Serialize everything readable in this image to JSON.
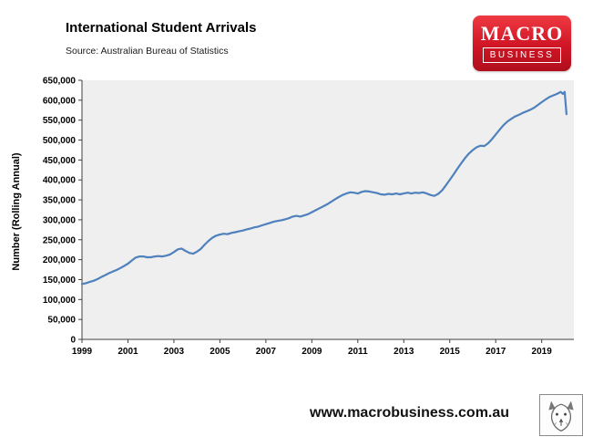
{
  "logo": {
    "line1": "MACRO",
    "line2": "BUSINESS"
  },
  "footer": {
    "url": "www.macrobusiness.com.au",
    "wolf_icon": "wolf-sketch-logo"
  },
  "chart_data": {
    "type": "line",
    "title": "International Student Arrivals",
    "source": "Source: Australian Bureau of Statistics",
    "ylabel": "Number (Rolling Annual)",
    "xlabel": "",
    "series_name": "International student arrivals, rolling annual",
    "legend_position": "none",
    "grid": false,
    "line_color": "#4f81bd",
    "plot_bg": "#efefef",
    "axis_color": "#404040",
    "ylim": [
      0,
      650000
    ],
    "ytick_step": 50000,
    "yticks": [
      0,
      50000,
      100000,
      150000,
      200000,
      250000,
      300000,
      350000,
      400000,
      450000,
      500000,
      550000,
      600000,
      650000
    ],
    "xlim": [
      1999,
      2020.4
    ],
    "xticks": [
      1999,
      2001,
      2003,
      2005,
      2007,
      2009,
      2011,
      2013,
      2015,
      2017,
      2019
    ],
    "points": [
      [
        1999.0,
        139000
      ],
      [
        1999.17,
        141000
      ],
      [
        1999.33,
        144000
      ],
      [
        1999.5,
        147000
      ],
      [
        1999.67,
        151000
      ],
      [
        1999.83,
        156000
      ],
      [
        2000.0,
        161000
      ],
      [
        2000.17,
        166000
      ],
      [
        2000.33,
        170000
      ],
      [
        2000.5,
        174000
      ],
      [
        2000.67,
        179000
      ],
      [
        2000.83,
        184000
      ],
      [
        2001.0,
        190000
      ],
      [
        2001.17,
        198000
      ],
      [
        2001.33,
        205000
      ],
      [
        2001.5,
        208000
      ],
      [
        2001.67,
        208000
      ],
      [
        2001.83,
        206000
      ],
      [
        2002.0,
        206000
      ],
      [
        2002.17,
        208000
      ],
      [
        2002.33,
        209000
      ],
      [
        2002.5,
        208000
      ],
      [
        2002.67,
        210000
      ],
      [
        2002.83,
        213000
      ],
      [
        2003.0,
        219000
      ],
      [
        2003.17,
        226000
      ],
      [
        2003.33,
        228000
      ],
      [
        2003.5,
        222000
      ],
      [
        2003.67,
        217000
      ],
      [
        2003.83,
        215000
      ],
      [
        2004.0,
        220000
      ],
      [
        2004.17,
        227000
      ],
      [
        2004.33,
        237000
      ],
      [
        2004.5,
        247000
      ],
      [
        2004.67,
        255000
      ],
      [
        2004.83,
        260000
      ],
      [
        2005.0,
        263000
      ],
      [
        2005.17,
        265000
      ],
      [
        2005.33,
        264000
      ],
      [
        2005.5,
        267000
      ],
      [
        2005.67,
        269000
      ],
      [
        2005.83,
        271000
      ],
      [
        2006.0,
        273000
      ],
      [
        2006.17,
        276000
      ],
      [
        2006.33,
        278000
      ],
      [
        2006.5,
        281000
      ],
      [
        2006.67,
        283000
      ],
      [
        2006.83,
        286000
      ],
      [
        2007.0,
        289000
      ],
      [
        2007.17,
        292000
      ],
      [
        2007.33,
        295000
      ],
      [
        2007.5,
        297000
      ],
      [
        2007.67,
        299000
      ],
      [
        2007.83,
        301000
      ],
      [
        2008.0,
        304000
      ],
      [
        2008.17,
        308000
      ],
      [
        2008.33,
        310000
      ],
      [
        2008.5,
        308000
      ],
      [
        2008.67,
        311000
      ],
      [
        2008.83,
        314000
      ],
      [
        2009.0,
        319000
      ],
      [
        2009.17,
        324000
      ],
      [
        2009.33,
        329000
      ],
      [
        2009.5,
        334000
      ],
      [
        2009.67,
        339000
      ],
      [
        2009.83,
        345000
      ],
      [
        2010.0,
        351000
      ],
      [
        2010.17,
        357000
      ],
      [
        2010.33,
        362000
      ],
      [
        2010.5,
        366000
      ],
      [
        2010.67,
        369000
      ],
      [
        2010.83,
        368000
      ],
      [
        2011.0,
        366000
      ],
      [
        2011.17,
        370000
      ],
      [
        2011.33,
        372000
      ],
      [
        2011.5,
        371000
      ],
      [
        2011.67,
        369000
      ],
      [
        2011.83,
        367000
      ],
      [
        2012.0,
        364000
      ],
      [
        2012.17,
        363000
      ],
      [
        2012.33,
        365000
      ],
      [
        2012.5,
        364000
      ],
      [
        2012.67,
        366000
      ],
      [
        2012.83,
        364000
      ],
      [
        2013.0,
        366000
      ],
      [
        2013.17,
        368000
      ],
      [
        2013.33,
        366000
      ],
      [
        2013.5,
        368000
      ],
      [
        2013.67,
        367000
      ],
      [
        2013.83,
        369000
      ],
      [
        2014.0,
        366000
      ],
      [
        2014.17,
        362000
      ],
      [
        2014.33,
        360000
      ],
      [
        2014.5,
        365000
      ],
      [
        2014.67,
        374000
      ],
      [
        2014.83,
        386000
      ],
      [
        2015.0,
        400000
      ],
      [
        2015.17,
        414000
      ],
      [
        2015.33,
        428000
      ],
      [
        2015.5,
        442000
      ],
      [
        2015.67,
        455000
      ],
      [
        2015.83,
        466000
      ],
      [
        2016.0,
        475000
      ],
      [
        2016.17,
        482000
      ],
      [
        2016.33,
        486000
      ],
      [
        2016.5,
        485000
      ],
      [
        2016.67,
        492000
      ],
      [
        2016.83,
        502000
      ],
      [
        2017.0,
        514000
      ],
      [
        2017.17,
        526000
      ],
      [
        2017.33,
        537000
      ],
      [
        2017.5,
        546000
      ],
      [
        2017.67,
        553000
      ],
      [
        2017.83,
        559000
      ],
      [
        2018.0,
        563000
      ],
      [
        2018.17,
        568000
      ],
      [
        2018.33,
        572000
      ],
      [
        2018.5,
        576000
      ],
      [
        2018.67,
        581000
      ],
      [
        2018.83,
        588000
      ],
      [
        2019.0,
        595000
      ],
      [
        2019.17,
        602000
      ],
      [
        2019.33,
        608000
      ],
      [
        2019.5,
        612000
      ],
      [
        2019.67,
        616000
      ],
      [
        2019.83,
        621000
      ],
      [
        2019.92,
        616000
      ],
      [
        2020.0,
        621000
      ],
      [
        2020.08,
        565000
      ]
    ]
  }
}
